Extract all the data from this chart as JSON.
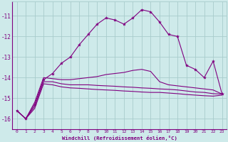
{
  "xlabel": "Windchill (Refroidissement éolien,°C)",
  "background_color": "#ceeaea",
  "grid_color": "#a8cccc",
  "line_color": "#800080",
  "xlim": [
    -0.5,
    23.5
  ],
  "ylim": [
    -16.5,
    -10.3
  ],
  "yticks": [
    -16,
    -15,
    -14,
    -13,
    -12,
    -11
  ],
  "xticks": [
    0,
    1,
    2,
    3,
    4,
    5,
    6,
    7,
    8,
    9,
    10,
    11,
    12,
    13,
    14,
    15,
    16,
    17,
    18,
    19,
    20,
    21,
    22,
    23
  ],
  "series1_x": [
    0,
    1,
    2,
    3,
    4,
    5,
    6,
    7,
    8,
    9,
    10,
    11,
    12,
    13,
    14,
    15,
    16,
    17,
    18,
    19,
    20,
    21,
    22,
    23
  ],
  "series1_y": [
    -15.6,
    -16.0,
    -15.3,
    -14.1,
    -13.8,
    -13.3,
    -13.0,
    -12.4,
    -11.9,
    -11.4,
    -11.1,
    -11.2,
    -11.4,
    -11.1,
    -10.7,
    -10.8,
    -11.3,
    -11.9,
    -12.0,
    -13.4,
    -13.6,
    -14.0,
    -13.2,
    -14.8
  ],
  "series2_x": [
    0,
    1,
    2,
    3,
    4,
    5,
    6,
    7,
    8,
    9,
    10,
    11,
    12,
    13,
    14,
    15,
    16,
    17,
    18,
    19,
    20,
    21,
    22,
    23
  ],
  "series2_y": [
    -15.6,
    -16.0,
    -15.2,
    -14.0,
    -14.05,
    -14.1,
    -14.1,
    -14.05,
    -14.0,
    -13.95,
    -13.85,
    -13.8,
    -13.75,
    -13.65,
    -13.6,
    -13.7,
    -14.2,
    -14.35,
    -14.4,
    -14.45,
    -14.5,
    -14.55,
    -14.6,
    -14.8
  ],
  "series3_x": [
    0,
    1,
    2,
    3,
    4,
    5,
    6,
    7,
    8,
    9,
    10,
    11,
    12,
    13,
    14,
    15,
    16,
    17,
    18,
    19,
    20,
    21,
    22,
    23
  ],
  "series3_y": [
    -15.6,
    -16.0,
    -15.4,
    -14.2,
    -14.2,
    -14.3,
    -14.35,
    -14.35,
    -14.35,
    -14.38,
    -14.4,
    -14.42,
    -14.45,
    -14.47,
    -14.5,
    -14.52,
    -14.55,
    -14.57,
    -14.6,
    -14.65,
    -14.7,
    -14.72,
    -14.78,
    -14.8
  ],
  "series4_x": [
    0,
    1,
    2,
    3,
    4,
    5,
    6,
    7,
    8,
    9,
    10,
    11,
    12,
    13,
    14,
    15,
    16,
    17,
    18,
    19,
    20,
    21,
    22,
    23
  ],
  "series4_y": [
    -15.6,
    -16.0,
    -15.5,
    -14.3,
    -14.35,
    -14.45,
    -14.5,
    -14.52,
    -14.55,
    -14.58,
    -14.6,
    -14.62,
    -14.65,
    -14.67,
    -14.7,
    -14.72,
    -14.72,
    -14.75,
    -14.78,
    -14.82,
    -14.85,
    -14.88,
    -14.9,
    -14.85
  ]
}
